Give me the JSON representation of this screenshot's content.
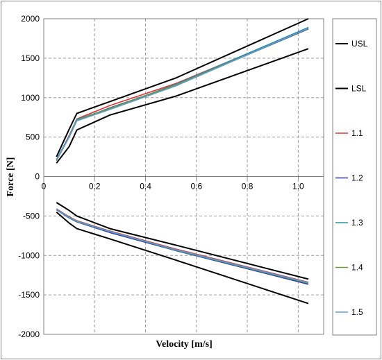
{
  "chart_data": {
    "type": "line",
    "title": "",
    "xlabel": "Velocity [m/s]",
    "ylabel": "Force [N]",
    "xlim": [
      0,
      1.1
    ],
    "ylim": [
      -2000,
      2000
    ],
    "x_ticks": [
      0,
      0.2,
      0.4,
      0.6,
      0.8,
      1
    ],
    "x_tick_labels": [
      "0",
      "0.2",
      "0.4",
      "0.6",
      "0.8",
      "1.0"
    ],
    "y_ticks": [
      -2000,
      -1500,
      -1000,
      -500,
      0,
      500,
      1000,
      1500,
      2000
    ],
    "y_tick_labels": [
      "-2000",
      "-1500",
      "-1000",
      "-500",
      "0",
      "500",
      "1000",
      "1500",
      "2000"
    ],
    "grid": true,
    "legend_position": "right",
    "series": [
      {
        "name": "USL",
        "color": "#000000",
        "rebound": [
          [
            0.05,
            250
          ],
          [
            0.1,
            600
          ],
          [
            0.13,
            800
          ],
          [
            0.26,
            950
          ],
          [
            0.52,
            1250
          ],
          [
            1.04,
            2000
          ]
        ],
        "compression": [
          [
            0.05,
            -330
          ],
          [
            0.1,
            -430
          ],
          [
            0.13,
            -500
          ],
          [
            0.26,
            -660
          ],
          [
            0.52,
            -870
          ],
          [
            1.04,
            -1300
          ]
        ]
      },
      {
        "name": "LSL",
        "color": "#000000",
        "rebound": [
          [
            0.05,
            170
          ],
          [
            0.1,
            380
          ],
          [
            0.13,
            590
          ],
          [
            0.26,
            780
          ],
          [
            0.52,
            1020
          ],
          [
            1.04,
            1620
          ]
        ],
        "compression": [
          [
            0.05,
            -450
          ],
          [
            0.1,
            -590
          ],
          [
            0.13,
            -660
          ],
          [
            0.26,
            -790
          ],
          [
            0.52,
            -1060
          ],
          [
            1.04,
            -1610
          ]
        ]
      },
      {
        "name": "1.1",
        "color": "#e8312f",
        "rebound": [
          [
            0.05,
            210
          ],
          [
            0.1,
            520
          ],
          [
            0.13,
            730
          ],
          [
            0.26,
            900
          ],
          [
            0.52,
            1180
          ],
          [
            1.04,
            1880
          ]
        ],
        "compression": [
          [
            0.05,
            -410
          ],
          [
            0.1,
            -510
          ],
          [
            0.13,
            -560
          ],
          [
            0.26,
            -690
          ],
          [
            0.52,
            -920
          ],
          [
            1.04,
            -1340
          ]
        ]
      },
      {
        "name": "1.2",
        "color": "#2e35a8",
        "rebound": [
          [
            0.05,
            205
          ],
          [
            0.1,
            500
          ],
          [
            0.13,
            710
          ],
          [
            0.26,
            870
          ],
          [
            0.52,
            1160
          ],
          [
            1.04,
            1870
          ]
        ],
        "compression": [
          [
            0.05,
            -420
          ],
          [
            0.1,
            -525
          ],
          [
            0.13,
            -575
          ],
          [
            0.26,
            -710
          ],
          [
            0.52,
            -940
          ],
          [
            1.04,
            -1365
          ]
        ]
      },
      {
        "name": "1.3",
        "color": "#2e8fa0",
        "rebound": [
          [
            0.05,
            215
          ],
          [
            0.1,
            510
          ],
          [
            0.13,
            725
          ],
          [
            0.26,
            860
          ],
          [
            0.52,
            1170
          ],
          [
            1.04,
            1890
          ]
        ],
        "compression": [
          [
            0.05,
            -415
          ],
          [
            0.1,
            -520
          ],
          [
            0.13,
            -570
          ],
          [
            0.26,
            -700
          ],
          [
            0.52,
            -935
          ],
          [
            1.04,
            -1355
          ]
        ]
      },
      {
        "name": "1.4",
        "color": "#6b9a3a",
        "rebound": [
          [
            0.05,
            200
          ],
          [
            0.1,
            505
          ],
          [
            0.13,
            715
          ],
          [
            0.26,
            865
          ],
          [
            0.52,
            1160
          ],
          [
            1.04,
            1875
          ]
        ],
        "compression": [
          [
            0.05,
            -418
          ],
          [
            0.1,
            -515
          ],
          [
            0.13,
            -565
          ],
          [
            0.26,
            -695
          ],
          [
            0.52,
            -930
          ],
          [
            1.04,
            -1350
          ]
        ]
      },
      {
        "name": "1.5",
        "color": "#5a9bd5",
        "rebound": [
          [
            0.05,
            210
          ],
          [
            0.1,
            500
          ],
          [
            0.13,
            705
          ],
          [
            0.26,
            850
          ],
          [
            0.52,
            1150
          ],
          [
            1.04,
            1880
          ]
        ],
        "compression": [
          [
            0.05,
            -412
          ],
          [
            0.1,
            -518
          ],
          [
            0.13,
            -568
          ],
          [
            0.26,
            -698
          ],
          [
            0.52,
            -928
          ],
          [
            1.04,
            -1345
          ]
        ]
      }
    ]
  }
}
